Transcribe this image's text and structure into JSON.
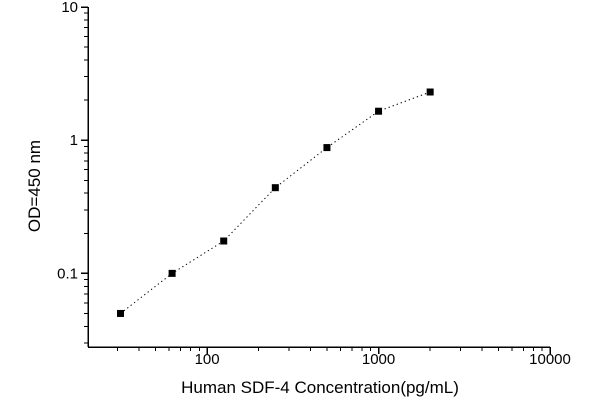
{
  "figure": {
    "background": "#ffffff",
    "foreground": "#000000"
  },
  "chart_data": {
    "type": "scatter",
    "title": "",
    "xlabel": "Human SDF-4 Concentration(pg/mL)",
    "ylabel": "OD=450 nm",
    "xscale": "log",
    "yscale": "log",
    "xlim": [
      20.2,
      10000
    ],
    "ylim": [
      0.028,
      10
    ],
    "grid": false,
    "legend": null,
    "marker": "filled-square",
    "marker_color": "#000000",
    "marker_size": 7,
    "line_style": "dotted",
    "line_color": "#000000",
    "x": [
      31.25,
      62.5,
      125,
      250,
      500,
      1000,
      2000
    ],
    "y": [
      0.05,
      0.1,
      0.175,
      0.44,
      0.88,
      1.65,
      2.3
    ],
    "x_major_ticks": [
      {
        "value": 100,
        "label": "100"
      },
      {
        "value": 1000,
        "label": "1000"
      },
      {
        "value": 10000,
        "label": "10000"
      }
    ],
    "y_major_ticks": [
      {
        "value": 10,
        "label": "10"
      },
      {
        "value": 1,
        "label": "1"
      },
      {
        "value": 0.1,
        "label": "0.1"
      }
    ]
  }
}
